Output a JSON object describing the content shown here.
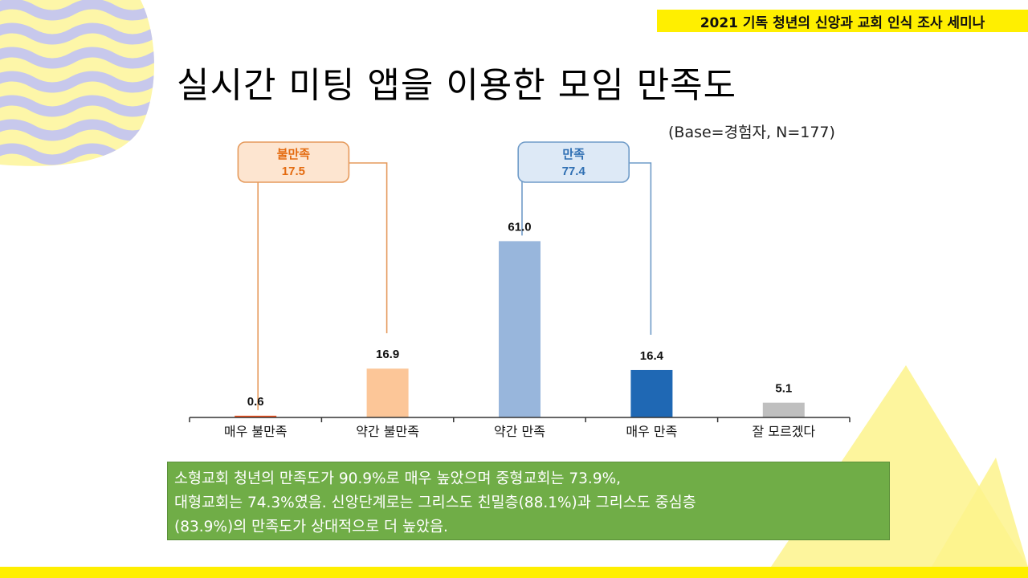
{
  "header": {
    "banner": "2021 기독 청년의 신앙과 교회 인식 조사 세미나"
  },
  "page": {
    "title": "실시간 미팅 앱을 이용한 모임 만족도",
    "base_note": "(Base=경험자, N=177)"
  },
  "colors": {
    "bar_very_unsatisfied": "#f4511e",
    "bar_somewhat_unsatisfied": "#fcc698",
    "bar_somewhat_satisfied": "#98b6dc",
    "bar_very_satisfied": "#1f68b4",
    "bar_dont_know": "#bfbfbf",
    "group_unsatisfied": "#e59a5c",
    "group_satisfied": "#6f9bc8",
    "banner": "#ffef00",
    "summary_bg": "#70ad47"
  },
  "chart_data": {
    "type": "bar",
    "title": "",
    "xlabel": "",
    "ylabel": "",
    "ylim": [
      0,
      100
    ],
    "categories": [
      "매우 불만족",
      "약간 불만족",
      "약간 만족",
      "매우 만족",
      "잘 모르겠다"
    ],
    "values": [
      0.6,
      16.9,
      61.0,
      16.4,
      5.1
    ],
    "value_labels": [
      "0.6",
      "16.9",
      "61.0",
      "16.4",
      "5.1"
    ],
    "groups": [
      {
        "label": "불만족",
        "value": "17.5",
        "members": [
          "매우 불만족",
          "약간 불만족"
        ]
      },
      {
        "label": "만족",
        "value": "77.4",
        "members": [
          "약간 만족",
          "매우 만족"
        ]
      }
    ]
  },
  "summary": {
    "lines": [
      "소형교회 청년의 만족도가 90.9%로 매우 높았으며 중형교회는 73.9%,",
      "대형교회는 74.3%였음. 신앙단계로는 그리스도 친밀층(88.1%)과 그리스도 중심층",
      "(83.9%)의 만족도가 상대적으로 더 높았음."
    ]
  }
}
